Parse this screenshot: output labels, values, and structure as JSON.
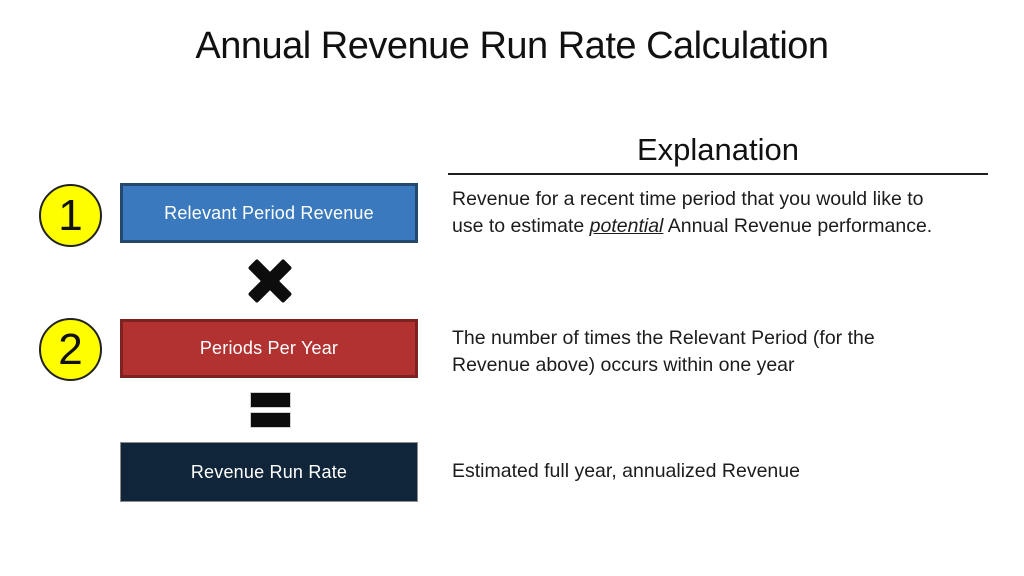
{
  "title": "Annual Revenue Run Rate Calculation",
  "explanation": {
    "heading": "Explanation",
    "items": [
      {
        "part1": "Revenue for a recent time period that you would like to\nuse to estimate ",
        "emphasis": "potential",
        "part2": " Annual Revenue performance."
      },
      {
        "text": "The number of times the Relevant Period (for the\nRevenue above) occurs within one year"
      },
      {
        "text": "Estimated full year, annualized Revenue"
      }
    ]
  },
  "formula": {
    "steps": [
      {
        "number": "1",
        "label": "Relevant Period Revenue",
        "fill": "#3a79be",
        "border": "#24486e"
      },
      {
        "number": "2",
        "label": "Periods Per Year",
        "fill": "#b13231",
        "border": "#7e2121"
      },
      {
        "number": "",
        "label": "Revenue Run Rate",
        "fill": "#10243a",
        "border": "#8c8c8c"
      }
    ],
    "icons": {
      "multiply": "heavy-multiplication-x",
      "equals": "heavy-equals-sign"
    }
  },
  "colors": {
    "background": "#ffffff",
    "text": "#1a1a1a",
    "box_text": "#ffffff",
    "badge_fill": "#fefe00",
    "badge_border": "#222222",
    "operator": "#0d0d0d",
    "heading_rule": "#1f1f1f"
  }
}
